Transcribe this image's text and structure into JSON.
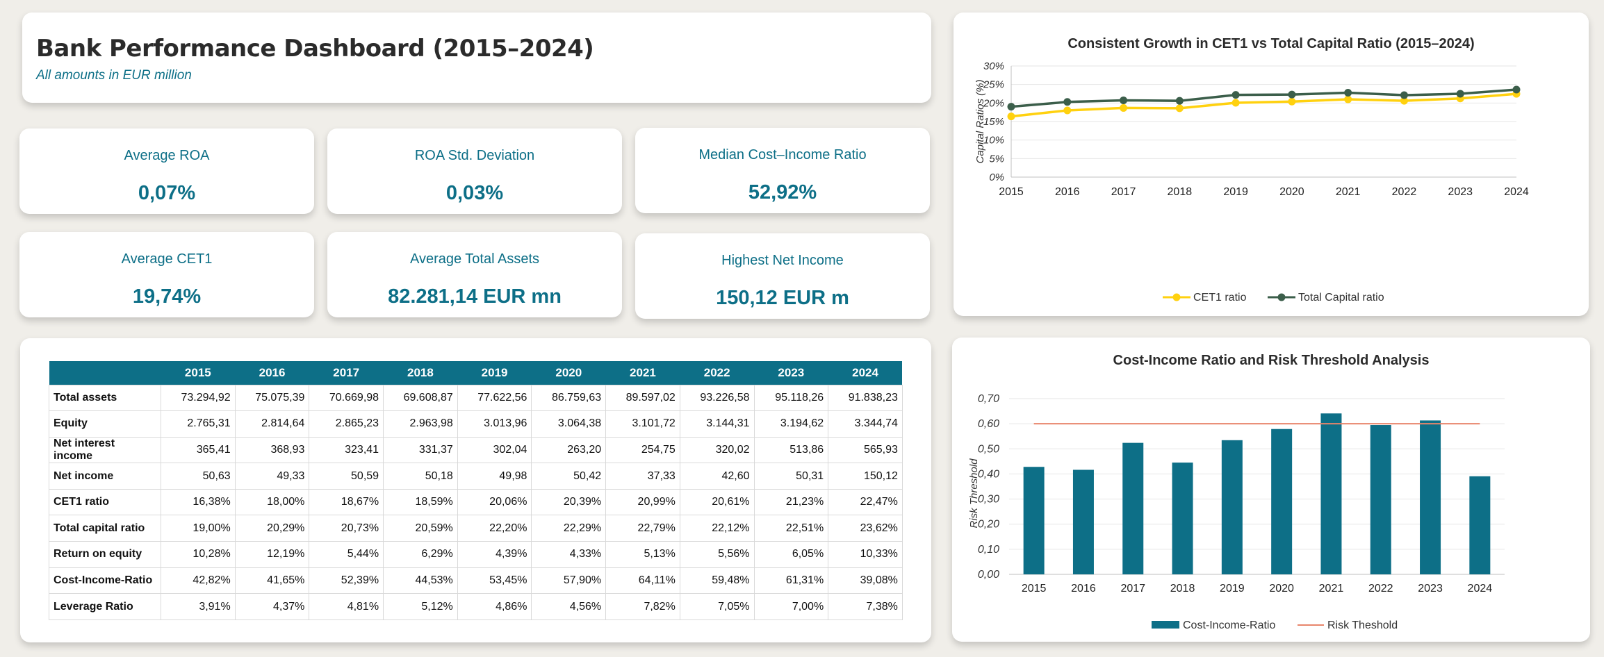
{
  "header": {
    "title": "Bank Performance Dashboard (2015–2024)",
    "subtitle": "All amounts in EUR million"
  },
  "kpis": [
    {
      "label": "Average ROA",
      "value": "0,07%"
    },
    {
      "label": "ROA Std. Deviation",
      "value": "0,03%"
    },
    {
      "label": "Median Cost–Income Ratio",
      "value": "52,92%"
    },
    {
      "label": "Average CET1",
      "value": "19,74%"
    },
    {
      "label": "Average Total Assets",
      "value": "82.281,14 EUR mn"
    },
    {
      "label": "Highest Net Income",
      "value": "150,12 EUR m"
    }
  ],
  "table": {
    "columns": [
      "",
      "2015",
      "2016",
      "2017",
      "2018",
      "2019",
      "2020",
      "2021",
      "2022",
      "2023",
      "2024"
    ],
    "rows": [
      {
        "label": "Total assets",
        "values": [
          "73.294,92",
          "75.075,39",
          "70.669,98",
          "69.608,87",
          "77.622,56",
          "86.759,63",
          "89.597,02",
          "93.226,58",
          "95.118,26",
          "91.838,23"
        ]
      },
      {
        "label": "Equity",
        "values": [
          "2.765,31",
          "2.814,64",
          "2.865,23",
          "2.963,98",
          "3.013,96",
          "3.064,38",
          "3.101,72",
          "3.144,31",
          "3.194,62",
          "3.344,74"
        ]
      },
      {
        "label": "Net interest income",
        "values": [
          "365,41",
          "368,93",
          "323,41",
          "331,37",
          "302,04",
          "263,20",
          "254,75",
          "320,02",
          "513,86",
          "565,93"
        ]
      },
      {
        "label": "Net income",
        "values": [
          "50,63",
          "49,33",
          "50,59",
          "50,18",
          "49,98",
          "50,42",
          "37,33",
          "42,60",
          "50,31",
          "150,12"
        ]
      },
      {
        "label": "CET1 ratio",
        "values": [
          "16,38%",
          "18,00%",
          "18,67%",
          "18,59%",
          "20,06%",
          "20,39%",
          "20,99%",
          "20,61%",
          "21,23%",
          "22,47%"
        ]
      },
      {
        "label": "Total capital ratio",
        "values": [
          "19,00%",
          "20,29%",
          "20,73%",
          "20,59%",
          "22,20%",
          "22,29%",
          "22,79%",
          "22,12%",
          "22,51%",
          "23,62%"
        ]
      },
      {
        "label": "Return on equity",
        "values": [
          "10,28%",
          "12,19%",
          "5,44%",
          "6,29%",
          "4,39%",
          "4,33%",
          "5,13%",
          "5,56%",
          "6,05%",
          "10,33%"
        ]
      },
      {
        "label": "Cost-Income-Ratio",
        "values": [
          "42,82%",
          "41,65%",
          "52,39%",
          "44,53%",
          "53,45%",
          "57,90%",
          "64,11%",
          "59,48%",
          "61,31%",
          "39,08%"
        ]
      },
      {
        "label": "Leverage Ratio",
        "values": [
          "3,91%",
          "4,37%",
          "4,81%",
          "5,12%",
          "4,86%",
          "4,56%",
          "7,82%",
          "7,05%",
          "7,00%",
          "7,38%"
        ]
      }
    ]
  },
  "colors": {
    "teal": "#0d6f87",
    "cet1": "#ffd10f",
    "total_capital": "#3b5e4a",
    "threshold": "#e8856b"
  },
  "chart_data": [
    {
      "type": "line",
      "title": "Consistent Growth in CET1 vs Total Capital Ratio (2015–2024)",
      "xlabel": "",
      "ylabel": "Capital Ratios (%)",
      "x": [
        "2015",
        "2016",
        "2017",
        "2018",
        "2019",
        "2020",
        "2021",
        "2022",
        "2023",
        "2024"
      ],
      "yticks": [
        "0%",
        "5%",
        "10%",
        "15%",
        "20%",
        "25%",
        "30%"
      ],
      "ylim": [
        0,
        30
      ],
      "grid": true,
      "legend_position": "bottom",
      "series": [
        {
          "name": "CET1 ratio",
          "values": [
            16.38,
            18.0,
            18.67,
            18.59,
            20.06,
            20.39,
            20.99,
            20.61,
            21.23,
            22.47
          ],
          "color": "#ffd10f"
        },
        {
          "name": "Total Capital ratio",
          "values": [
            19.0,
            20.29,
            20.73,
            20.59,
            22.2,
            22.29,
            22.79,
            22.12,
            22.51,
            23.62
          ],
          "color": "#3b5e4a"
        }
      ]
    },
    {
      "type": "bar",
      "title": "Cost-Income Ratio and Risk Threshold Analysis",
      "xlabel": "",
      "ylabel": "Risk Threshold",
      "categories": [
        "2015",
        "2016",
        "2017",
        "2018",
        "2019",
        "2020",
        "2021",
        "2022",
        "2023",
        "2024"
      ],
      "yticks": [
        "0,00",
        "0,10",
        "0,20",
        "0,30",
        "0,40",
        "0,50",
        "0,60",
        "0,70"
      ],
      "ylim": [
        0,
        0.7
      ],
      "grid": true,
      "legend_position": "bottom",
      "series": [
        {
          "name": "Cost-Income-Ratio",
          "values": [
            0.4282,
            0.4165,
            0.5239,
            0.4453,
            0.5345,
            0.579,
            0.6411,
            0.5948,
            0.6131,
            0.3908
          ],
          "color": "#0d6f87"
        },
        {
          "name": "Risk Theshold",
          "values": [
            0.6,
            0.6,
            0.6,
            0.6,
            0.6,
            0.6,
            0.6,
            0.6,
            0.6,
            0.6
          ],
          "color": "#e8856b"
        }
      ]
    }
  ]
}
